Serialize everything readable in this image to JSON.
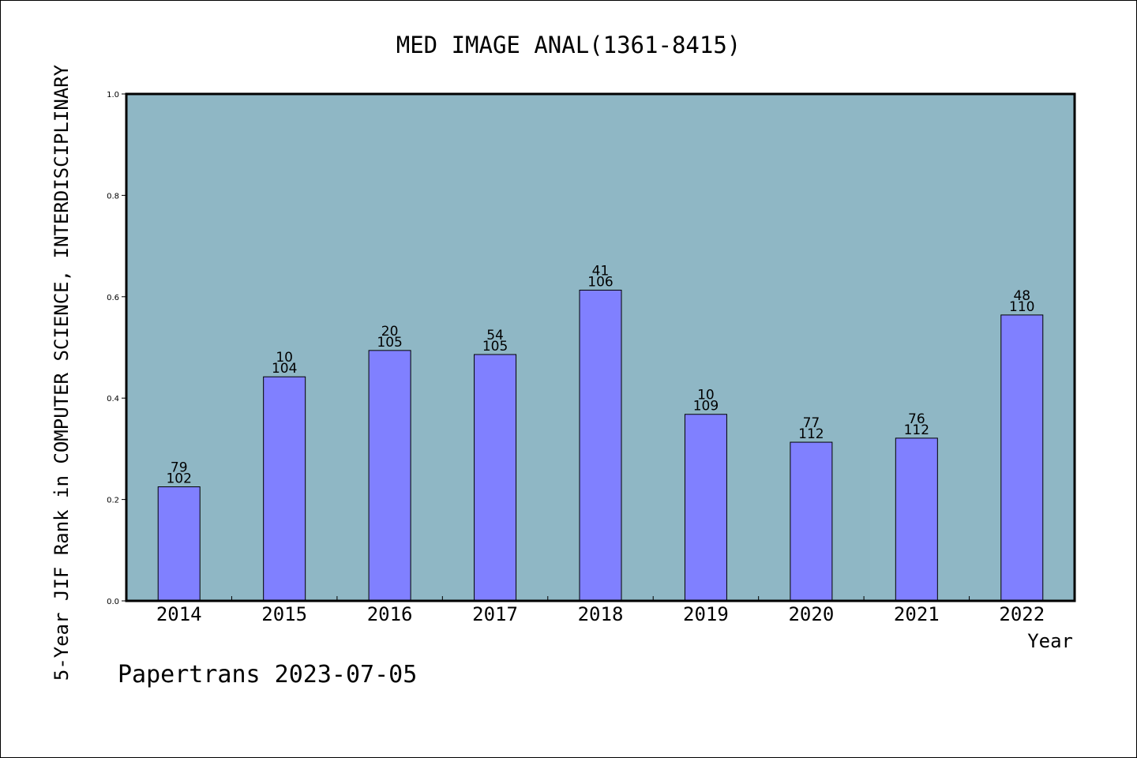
{
  "chart_data": {
    "type": "bar",
    "title": "MED IMAGE ANAL(1361-8415)",
    "xlabel": "Year",
    "ylabel": "5-Year JIF Rank in COMPUTER SCIENCE, INTERDISCIPLINARY",
    "footer": "Papertrans 2023-07-05",
    "categories": [
      "2014",
      "2015",
      "2016",
      "2017",
      "2018",
      "2019",
      "2020",
      "2021",
      "2022"
    ],
    "values": [
      0.225,
      0.442,
      0.494,
      0.486,
      0.613,
      0.368,
      0.313,
      0.321,
      0.564
    ],
    "ranks": [
      "79",
      "10",
      "20",
      "54",
      "41",
      "10",
      "77",
      "76",
      "48"
    ],
    "totals": [
      "102",
      "104",
      "105",
      "105",
      "106",
      "109",
      "112",
      "112",
      "110"
    ],
    "ylim": [
      0,
      1.0
    ],
    "yticks": [
      "0.0",
      "0.2",
      "0.4",
      "0.6",
      "0.8",
      "1.0"
    ],
    "grid": false,
    "legend": "none",
    "colors": {
      "plot_background": "#8fb7c5",
      "bar_fill": "#8080ff",
      "bar_stroke": "#000000"
    }
  }
}
